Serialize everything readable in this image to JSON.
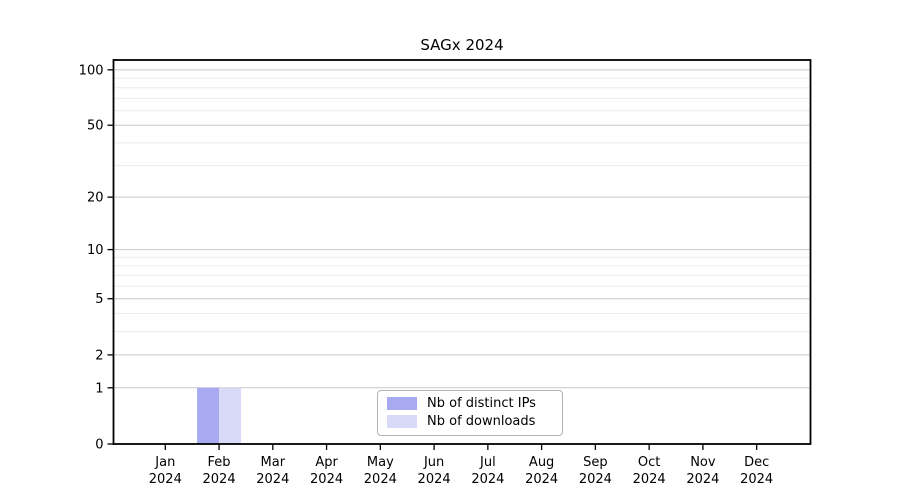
{
  "chart_data": {
    "type": "bar",
    "title": "SAGx 2024",
    "year": "2024",
    "categories": [
      "Jan",
      "Feb",
      "Mar",
      "Apr",
      "May",
      "Jun",
      "Jul",
      "Aug",
      "Sep",
      "Oct",
      "Nov",
      "Dec"
    ],
    "series": [
      {
        "name": "Nb of distinct IPs",
        "color": "#a9a9f2",
        "values": [
          0,
          1,
          0,
          0,
          0,
          0,
          0,
          0,
          0,
          0,
          0,
          0
        ]
      },
      {
        "name": "Nb of downloads",
        "color": "#d9d9f8",
        "values": [
          0,
          1,
          0,
          0,
          0,
          0,
          0,
          0,
          0,
          0,
          0,
          0
        ]
      }
    ],
    "yscale": "log1p",
    "ylim": [
      0,
      113
    ],
    "yticks": [
      0,
      1,
      2,
      5,
      10,
      20,
      50,
      100
    ],
    "minor_yticks": [
      3,
      4,
      6,
      7,
      8,
      9,
      30,
      40,
      60,
      70,
      80,
      90
    ],
    "grid": true,
    "legend_position": "lower center"
  },
  "colors": {
    "background": "#ffffff",
    "spine": "#000000",
    "text": "#000000",
    "major_grid": "#c9c9c9",
    "minor_grid": "#ececec",
    "legend_border": "#b3b3b3"
  }
}
